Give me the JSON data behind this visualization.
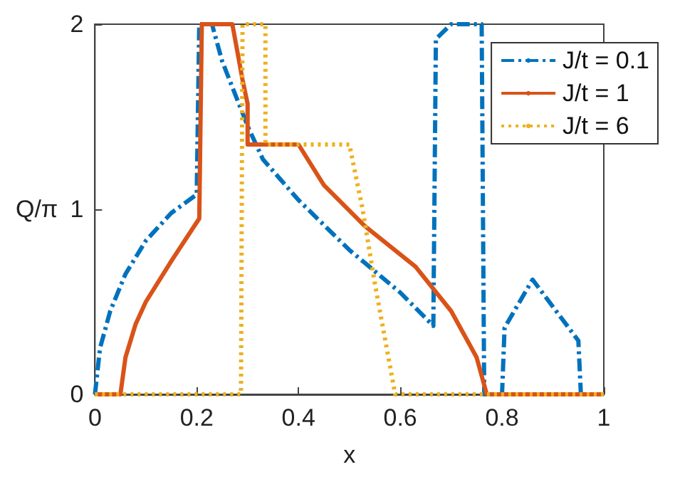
{
  "chart_data": {
    "type": "line",
    "xlabel": "x",
    "ylabel": "Q/π",
    "xlim": [
      0,
      1
    ],
    "xticks": [
      0,
      0.2,
      0.4,
      0.6,
      0.8,
      1
    ],
    "ylim": [
      0,
      2
    ],
    "yticks": [
      0,
      1,
      2
    ],
    "grid": false,
    "legend": "top right",
    "marker": "none",
    "series": [
      {
        "name": "J/t = 0.1",
        "color": "#0072bd",
        "line_style": "dashed",
        "x": [
          0,
          0.01,
          0.03,
          0.06,
          0.1,
          0.15,
          0.2,
          0.205,
          0.23,
          0.25,
          0.3,
          0.33,
          0.4,
          0.5,
          0.6,
          0.665,
          0.67,
          0.7,
          0.76,
          0.765,
          0.8,
          0.805,
          0.86,
          0.95,
          0.955,
          1
        ],
        "values": [
          0,
          0.25,
          0.45,
          0.65,
          0.83,
          0.98,
          1.08,
          2,
          2,
          1.8,
          1.45,
          1.27,
          1.05,
          0.78,
          0.55,
          0.37,
          1.92,
          2,
          2,
          0,
          0,
          0.36,
          0.62,
          0.29,
          0,
          0
        ]
      },
      {
        "name": "J/t = 1",
        "color": "#d95319",
        "line_style": "solid",
        "x": [
          0,
          0.05,
          0.06,
          0.08,
          0.1,
          0.15,
          0.205,
          0.21,
          0.27,
          0.29,
          0.3,
          0.3,
          0.4,
          0.45,
          0.53,
          0.63,
          0.7,
          0.75,
          0.77,
          1
        ],
        "values": [
          0,
          0,
          0.2,
          0.38,
          0.5,
          0.72,
          0.95,
          2,
          2,
          1.7,
          1.57,
          1.35,
          1.35,
          1.13,
          0.91,
          0.69,
          0.45,
          0.2,
          0,
          0
        ]
      },
      {
        "name": "J/t = 6",
        "color": "#edb120",
        "line_style": "dotted",
        "x": [
          0,
          0.287,
          0.29,
          0.335,
          0.335,
          0.5,
          0.526,
          0.55,
          0.57,
          0.59,
          1
        ],
        "values": [
          0,
          0,
          2,
          2,
          1.35,
          1.35,
          1.0,
          0.6,
          0.3,
          0,
          0
        ]
      }
    ]
  }
}
